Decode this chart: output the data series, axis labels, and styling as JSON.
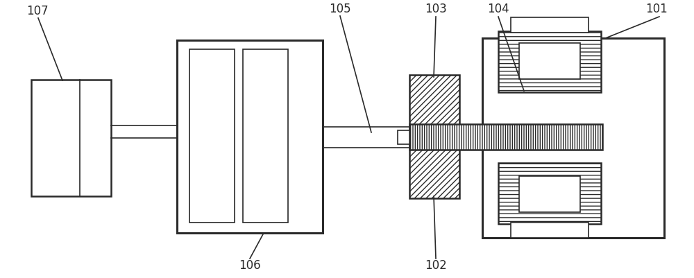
{
  "bg_color": "#ffffff",
  "line_color": "#2a2a2a",
  "figsize": [
    10.0,
    4.01
  ],
  "dpi": 100,
  "label_fontsize": 12
}
